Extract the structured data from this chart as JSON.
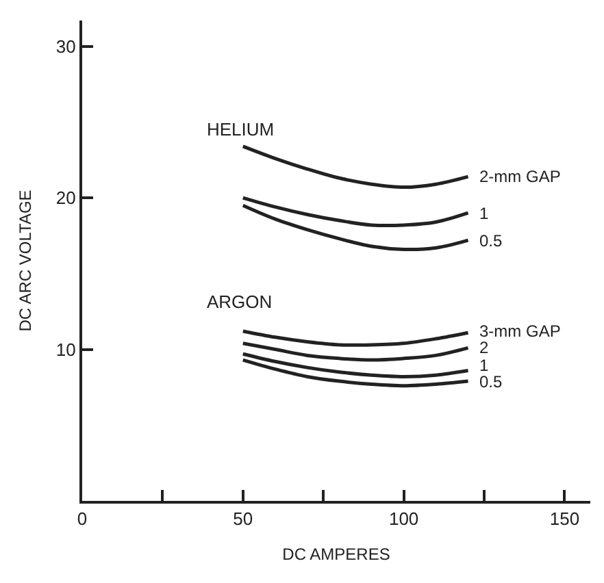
{
  "chart_data": {
    "type": "line",
    "xlabel": "DC AMPERES",
    "ylabel": "DC ARC VOLTAGE",
    "x": [
      50,
      60,
      70,
      80,
      90,
      100,
      110,
      120
    ],
    "series": [
      {
        "name": "2-mm GAP",
        "color": "#222222",
        "values": [
          23.4,
          22.6,
          21.9,
          21.3,
          20.9,
          20.7,
          20.9,
          21.4
        ]
      },
      {
        "name": "1",
        "color": "#222222",
        "values": [
          20.0,
          19.4,
          18.9,
          18.5,
          18.2,
          18.2,
          18.4,
          19.0
        ]
      },
      {
        "name": "0.5",
        "color": "#222222",
        "values": [
          19.5,
          18.6,
          17.9,
          17.3,
          16.8,
          16.6,
          16.7,
          17.2
        ]
      },
      {
        "name": "3-mm GAP",
        "color": "#222222",
        "values": [
          11.2,
          10.8,
          10.5,
          10.3,
          10.3,
          10.4,
          10.7,
          11.1
        ]
      },
      {
        "name": "2",
        "color": "#222222",
        "values": [
          10.4,
          10.0,
          9.6,
          9.4,
          9.3,
          9.4,
          9.6,
          10.1
        ]
      },
      {
        "name": "1",
        "color": "#222222",
        "values": [
          9.7,
          9.2,
          8.8,
          8.5,
          8.3,
          8.2,
          8.3,
          8.6
        ]
      },
      {
        "name": "0.5",
        "color": "#222222",
        "values": [
          9.3,
          8.7,
          8.2,
          7.9,
          7.7,
          7.6,
          7.7,
          7.9
        ]
      }
    ],
    "annotations": [
      "HELIUM",
      "ARGON"
    ],
    "xlim": [
      0,
      158
    ],
    "ylim": [
      0,
      31.7
    ],
    "xticks": [
      0,
      {
        "value": 25,
        "label": null
      },
      50,
      {
        "value": 75,
        "label": null
      },
      100,
      {
        "value": 125,
        "label": null
      },
      150
    ],
    "yticks": [
      10,
      20,
      30
    ],
    "legend": false,
    "marker": "none",
    "line_style": "solid"
  }
}
